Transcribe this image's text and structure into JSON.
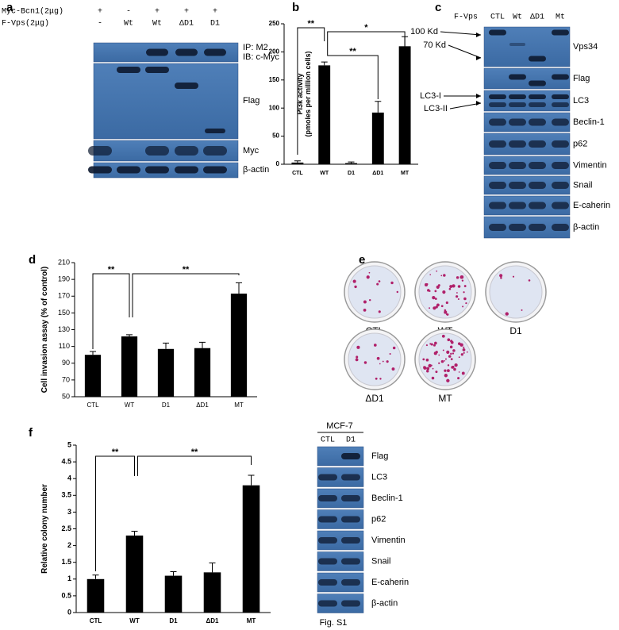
{
  "panel_labels": [
    "a",
    "b",
    "c",
    "d",
    "e",
    "f"
  ],
  "blot_a": {
    "rows": [
      {
        "name": "Myc-Bcn1(2μg)",
        "lanes": [
          "+",
          "-",
          "+",
          "+",
          "+"
        ]
      },
      {
        "name": "F-Vps(2μg)",
        "lanes": [
          "-",
          "Wt",
          "Wt",
          "ΔD1",
          "D1"
        ]
      }
    ],
    "bands": [
      "IP: M2",
      "IB: c-Myc",
      "Flag",
      "Myc",
      "β-actin"
    ]
  },
  "blot_c": {
    "header": "F-Vps",
    "lanes": [
      "CTL",
      "Wt",
      "ΔD1",
      "Mt"
    ],
    "markers": [
      "100 Kd",
      "70 Kd",
      "LC3-I",
      "LC3-II"
    ],
    "bands": [
      "Vps34",
      "Flag",
      "LC3",
      "Beclin-1",
      "p62",
      "Vimentin",
      "Snail",
      "E-caherin",
      "β-actin"
    ]
  },
  "plates": [
    "CTL",
    "WT",
    "D1",
    "ΔD1",
    "MT"
  ],
  "blot_s1": {
    "cell_line": "MCF-7",
    "lanes": [
      "CTL",
      "D1"
    ],
    "bands": [
      "Flag",
      "LC3",
      "Beclin-1",
      "p62",
      "Vimentin",
      "Snail",
      "E-caherin",
      "β-actin"
    ],
    "caption": "Fig. S1"
  },
  "chart_data": [
    {
      "type": "bar",
      "ylabel": "PI3k activity\n(pmoles per million cells)",
      "categories": [
        "CTL",
        "WT",
        "D1",
        "ΔD1",
        "MT"
      ],
      "values": [
        3,
        176,
        2,
        92,
        210
      ],
      "errors": [
        3,
        6,
        2,
        20,
        17
      ],
      "color": "#000000",
      "ylim": [
        0,
        250
      ],
      "yticks": [
        0,
        50,
        100,
        150,
        200,
        250
      ],
      "annotations": [
        "**",
        "**",
        "*"
      ]
    },
    {
      "type": "bar",
      "ylabel": "Cell invasion assay (% of control)",
      "categories": [
        "CTL",
        "WT",
        "D1",
        "ΔD1",
        "MT"
      ],
      "values": [
        100,
        122,
        107,
        108,
        173
      ],
      "errors": [
        4,
        2,
        7,
        7,
        13
      ],
      "color": "#000000",
      "ylim": [
        50,
        210
      ],
      "yticks": [
        50,
        70,
        90,
        110,
        130,
        150,
        170,
        190,
        210
      ],
      "annotations": [
        "**",
        "**"
      ]
    },
    {
      "type": "bar",
      "ylabel": "Relative colony number",
      "categories": [
        "CTL",
        "WT",
        "D1",
        "ΔD1",
        "MT"
      ],
      "values": [
        1,
        2.3,
        1.1,
        1.2,
        3.8
      ],
      "errors": [
        0.12,
        0.13,
        0.12,
        0.28,
        0.3
      ],
      "color": "#000000",
      "ylim": [
        0,
        5
      ],
      "yticks": [
        0,
        0.5,
        1,
        1.5,
        2,
        2.5,
        3,
        3.5,
        4,
        4.5,
        5
      ],
      "annotations": [
        "**",
        "**"
      ]
    }
  ]
}
